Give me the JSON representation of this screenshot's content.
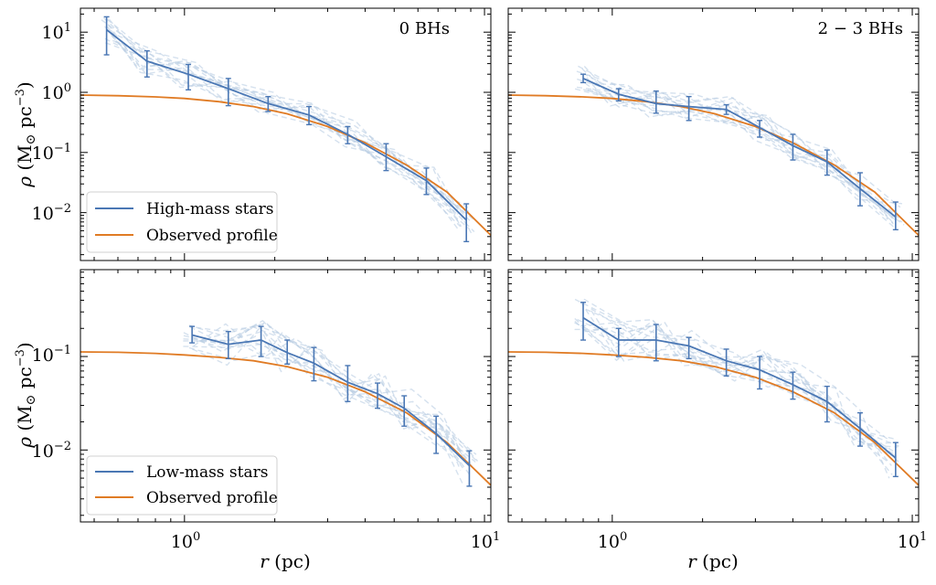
{
  "figure": {
    "colors": {
      "profile": "#e07b24",
      "stars": "#4a77b4",
      "sims": "#b9cde3"
    },
    "xlabel_r": "r",
    "xlabel_unit": " (pc)",
    "ylabel_rho": "ρ",
    "ylabel_unit_open": " (M",
    "ylabel_unit_sun": "⊙",
    "ylabel_unit_mid": " pc",
    "ylabel_unit_exp": "−3",
    "ylabel_unit_close": ")",
    "ticks_top": [
      {
        "base": "10",
        "exp": "1"
      },
      {
        "base": "10",
        "exp": "0"
      },
      {
        "base": "10",
        "exp": "−1"
      },
      {
        "base": "10",
        "exp": "−2"
      }
    ],
    "ticks_bottom": [
      {
        "base": "10",
        "exp": "−1"
      },
      {
        "base": "10",
        "exp": "−2"
      }
    ],
    "ticks_x": [
      {
        "base": "10",
        "exp": "0"
      },
      {
        "base": "10",
        "exp": "1"
      }
    ]
  },
  "chart_data": [
    {
      "type": "line",
      "panel": "top-left",
      "annotation": "0 BHs",
      "xscale": "log",
      "yscale": "log",
      "xlim": [
        0.45,
        10.5
      ],
      "ylim": [
        0.0016,
        25
      ],
      "legend": {
        "position": "lower-left",
        "entries": [
          "High-mass stars",
          "Observed profile"
        ]
      },
      "series": [
        {
          "name": "High-mass stars",
          "x": [
            0.55,
            0.75,
            1.03,
            1.4,
            1.9,
            2.6,
            3.5,
            4.7,
            6.4,
            8.7
          ],
          "y": [
            11,
            3.3,
            2.0,
            1.15,
            0.65,
            0.42,
            0.2,
            0.085,
            0.034,
            0.0075
          ],
          "yerr_low": [
            4.2,
            1.8,
            1.1,
            0.6,
            0.48,
            0.29,
            0.14,
            0.05,
            0.02,
            0.0033
          ],
          "yerr_high": [
            18,
            4.9,
            2.9,
            1.7,
            0.85,
            0.58,
            0.27,
            0.14,
            0.055,
            0.014
          ]
        },
        {
          "name": "Observed profile",
          "x": [
            0.45,
            0.6,
            0.8,
            1.0,
            1.3,
            1.7,
            2.2,
            3.0,
            4.0,
            5.5,
            7.5,
            10.5
          ],
          "y": [
            0.9,
            0.88,
            0.84,
            0.79,
            0.7,
            0.58,
            0.44,
            0.27,
            0.145,
            0.062,
            0.022,
            0.0042
          ]
        }
      ]
    },
    {
      "type": "line",
      "panel": "top-right",
      "annotation": "2 − 3 BHs",
      "xscale": "log",
      "yscale": "log",
      "xlim": [
        0.45,
        10.5
      ],
      "ylim": [
        0.0016,
        25
      ],
      "series": [
        {
          "name": "High-mass stars",
          "x": [
            0.8,
            1.05,
            1.4,
            1.8,
            2.4,
            3.1,
            4.0,
            5.2,
            6.7,
            8.8
          ],
          "y": [
            1.7,
            0.93,
            0.65,
            0.58,
            0.52,
            0.26,
            0.13,
            0.07,
            0.025,
            0.0085
          ],
          "yerr_low": [
            1.45,
            0.72,
            0.45,
            0.34,
            0.43,
            0.18,
            0.075,
            0.042,
            0.013,
            0.0052
          ],
          "yerr_high": [
            2.0,
            1.15,
            1.05,
            0.85,
            0.62,
            0.34,
            0.2,
            0.11,
            0.046,
            0.015
          ]
        },
        {
          "name": "Observed profile",
          "x": [
            0.45,
            0.6,
            0.8,
            1.0,
            1.3,
            1.7,
            2.2,
            3.0,
            4.0,
            5.5,
            7.5,
            10.5
          ],
          "y": [
            0.9,
            0.88,
            0.84,
            0.79,
            0.7,
            0.58,
            0.44,
            0.27,
            0.145,
            0.062,
            0.022,
            0.0042
          ]
        }
      ]
    },
    {
      "type": "line",
      "panel": "bottom-left",
      "xscale": "log",
      "yscale": "log",
      "xlim": [
        0.45,
        10.5
      ],
      "ylim": [
        0.0017,
        0.85
      ],
      "legend": {
        "position": "lower-left",
        "entries": [
          "Low-mass stars",
          "Observed profile"
        ]
      },
      "series": [
        {
          "name": "Low-mass stars",
          "x": [
            1.06,
            1.4,
            1.8,
            2.2,
            2.7,
            3.5,
            4.4,
            5.4,
            6.9,
            8.9
          ],
          "y": [
            0.17,
            0.135,
            0.15,
            0.11,
            0.085,
            0.053,
            0.04,
            0.028,
            0.015,
            0.0068
          ],
          "yerr_low": [
            0.14,
            0.095,
            0.1,
            0.083,
            0.055,
            0.033,
            0.028,
            0.018,
            0.0092,
            0.0041
          ],
          "yerr_high": [
            0.21,
            0.185,
            0.21,
            0.15,
            0.125,
            0.08,
            0.052,
            0.038,
            0.023,
            0.0098
          ]
        },
        {
          "name": "Observed profile",
          "x": [
            0.45,
            0.6,
            0.8,
            1.0,
            1.3,
            1.7,
            2.2,
            3.0,
            4.0,
            5.5,
            7.5,
            10.5
          ],
          "y": [
            0.112,
            0.111,
            0.108,
            0.104,
            0.098,
            0.09,
            0.078,
            0.06,
            0.042,
            0.025,
            0.012,
            0.0042
          ]
        }
      ]
    },
    {
      "type": "line",
      "panel": "bottom-right",
      "xscale": "log",
      "yscale": "log",
      "xlim": [
        0.45,
        10.5
      ],
      "ylim": [
        0.0017,
        0.85
      ],
      "series": [
        {
          "name": "Low-mass stars",
          "x": [
            0.8,
            1.05,
            1.4,
            1.8,
            2.4,
            3.1,
            4.0,
            5.2,
            6.7,
            8.8
          ],
          "y": [
            0.26,
            0.15,
            0.15,
            0.13,
            0.09,
            0.072,
            0.05,
            0.033,
            0.017,
            0.0082
          ],
          "yerr_low": [
            0.15,
            0.1,
            0.09,
            0.095,
            0.062,
            0.045,
            0.035,
            0.02,
            0.011,
            0.0052
          ],
          "yerr_high": [
            0.38,
            0.2,
            0.22,
            0.16,
            0.12,
            0.1,
            0.068,
            0.048,
            0.025,
            0.012
          ]
        },
        {
          "name": "Observed profile",
          "x": [
            0.45,
            0.6,
            0.8,
            1.0,
            1.3,
            1.7,
            2.2,
            3.0,
            4.0,
            5.5,
            7.5,
            10.5
          ],
          "y": [
            0.112,
            0.111,
            0.108,
            0.104,
            0.098,
            0.09,
            0.078,
            0.06,
            0.042,
            0.025,
            0.012,
            0.0042
          ]
        }
      ]
    }
  ]
}
